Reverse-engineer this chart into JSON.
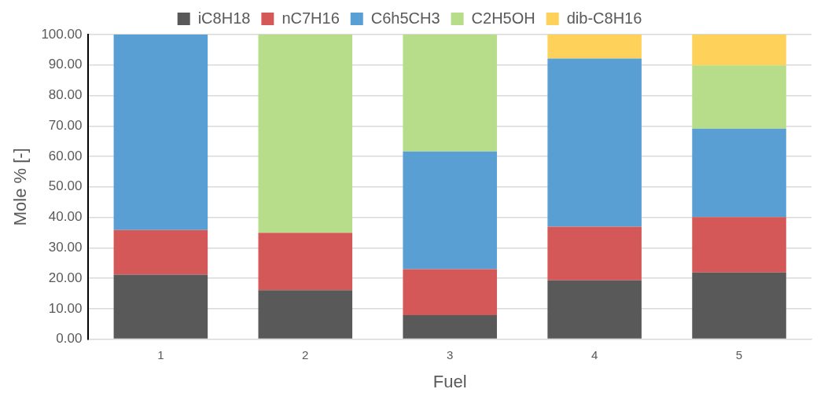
{
  "chart_data": {
    "type": "bar",
    "stacked": true,
    "xlabel": "Fuel",
    "ylabel": "Mole % [-]",
    "categories": [
      "1",
      "2",
      "3",
      "4",
      "5"
    ],
    "series": [
      {
        "name": "iC8H18",
        "color": "#595959",
        "values": [
          21.2,
          16.1,
          7.9,
          19.3,
          21.9
        ]
      },
      {
        "name": "nC7H16",
        "color": "#d45858",
        "values": [
          14.6,
          18.8,
          15.1,
          17.6,
          18.2
        ]
      },
      {
        "name": "C6h5CH3",
        "color": "#5a9fd4",
        "values": [
          64.2,
          0,
          38.6,
          55.2,
          29.0
        ]
      },
      {
        "name": "C2H5OH",
        "color": "#b7dd8a",
        "values": [
          0,
          65.1,
          38.4,
          0,
          20.8
        ]
      },
      {
        "name": "dib-C8H16",
        "color": "#fed25a",
        "values": [
          0,
          0,
          0,
          7.9,
          10.1
        ]
      }
    ],
    "ylim": [
      0,
      100
    ],
    "yticks": [
      {
        "value": 0,
        "label": "0.00"
      },
      {
        "value": 10,
        "label": "10.00"
      },
      {
        "value": 20,
        "label": "20.00"
      },
      {
        "value": 30,
        "label": "30.00"
      },
      {
        "value": 40,
        "label": "40.00"
      },
      {
        "value": 50,
        "label": "50.00"
      },
      {
        "value": 60,
        "label": "60.00"
      },
      {
        "value": 70,
        "label": "70.00"
      },
      {
        "value": 80,
        "label": "80.00"
      },
      {
        "value": 90,
        "label": "90.00"
      },
      {
        "value": 100,
        "label": "100.00"
      }
    ],
    "grid": "y",
    "legend": "top"
  }
}
